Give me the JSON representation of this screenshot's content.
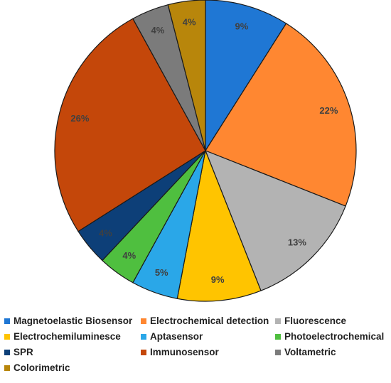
{
  "chart_data": {
    "type": "pie",
    "title": "",
    "unit": "%",
    "slices": [
      {
        "name": "Magnetoelastic Biosensor",
        "value": 9,
        "label": "9%",
        "color": "#1f77d4"
      },
      {
        "name": "Electrochemical detection",
        "value": 22,
        "label": "22%",
        "color": "#ff8731"
      },
      {
        "name": "Fluorescence",
        "value": 13,
        "label": "13%",
        "color": "#b3b3b3"
      },
      {
        "name": "Electrochemiluminesce",
        "value": 9,
        "label": "9%",
        "color": "#ffc400"
      },
      {
        "name": "Aptasensor",
        "value": 5,
        "label": "5%",
        "color": "#2aa7e8"
      },
      {
        "name": "Photoelectrochemical",
        "value": 4,
        "label": "4%",
        "color": "#4fbf3f"
      },
      {
        "name": "SPR",
        "value": 4,
        "label": "4%",
        "color": "#0d3f78"
      },
      {
        "name": "Immunosensor",
        "value": 26,
        "label": "26%",
        "color": "#c4470a"
      },
      {
        "name": "Voltametric",
        "value": 4,
        "label": "4%",
        "color": "#7b7b7b"
      },
      {
        "name": "Colorimetric",
        "value": 4,
        "label": "4%",
        "color": "#b8860b"
      }
    ],
    "legend_position": "bottom"
  }
}
